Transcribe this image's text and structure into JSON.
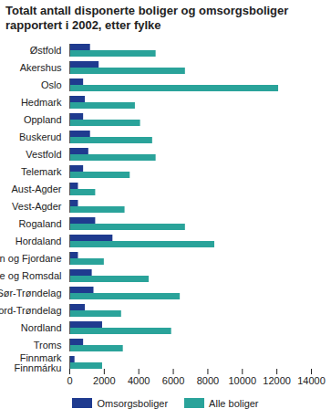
{
  "chart_data": {
    "type": "bar",
    "orientation": "horizontal",
    "title": "Totalt antall disponerte boliger og omsorgsboliger rapportert i 2002, etter fylke",
    "categories": [
      "Østfold",
      "Akershus",
      "Oslo",
      "Hedmark",
      "Oppland",
      "Buskerud",
      "Vestfold",
      "Telemark",
      "Aust-Agder",
      "Vest-Agder",
      "Rogaland",
      "Hordaland",
      "Sogn og Fjordane",
      "Møre og Romsdal",
      "Sør-Trøndelag",
      "Nord-Trøndelag",
      "Nordland",
      "Troms",
      "Finnmark\nFinnmárku"
    ],
    "series": [
      {
        "name": "Omsorgsboliger",
        "color": "#1f3b8f",
        "values": [
          1200,
          1700,
          800,
          900,
          800,
          1200,
          1100,
          800,
          500,
          500,
          1500,
          2500,
          500,
          1300,
          1400,
          900,
          1900,
          800,
          300
        ]
      },
      {
        "name": "Alle boliger",
        "color": "#2aa39a",
        "values": [
          5000,
          6700,
          12100,
          3800,
          4100,
          4800,
          5000,
          3500,
          1500,
          3200,
          6700,
          8400,
          2000,
          4600,
          6400,
          3000,
          5900,
          3100,
          1900
        ]
      }
    ],
    "xlim": [
      0,
      14000
    ],
    "xticks": [
      0,
      2000,
      4000,
      6000,
      8000,
      10000,
      12000,
      14000
    ],
    "grid": false,
    "legend": "bottom"
  }
}
